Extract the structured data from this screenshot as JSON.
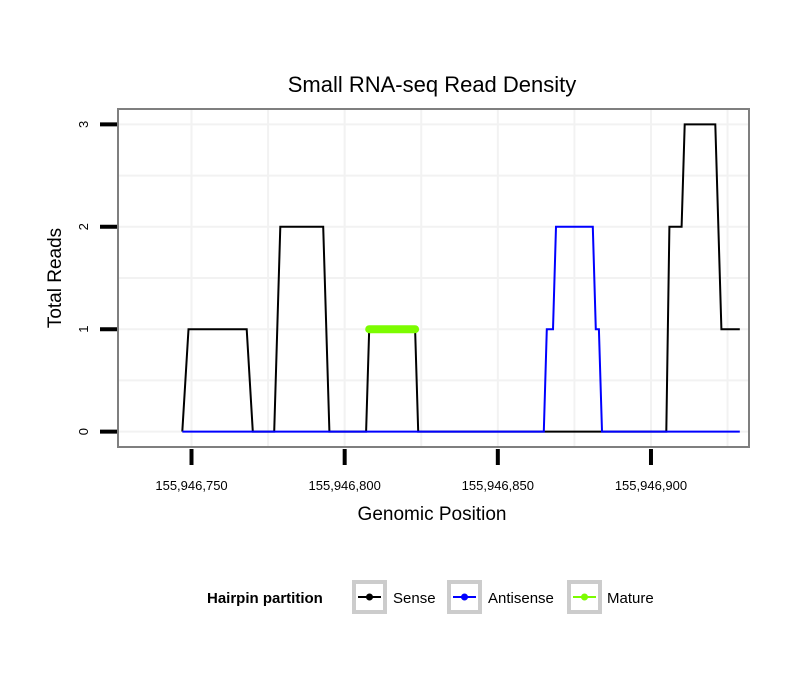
{
  "chart_data": {
    "type": "line",
    "title": "Small RNA-seq Read Density",
    "xlabel": "Genomic Position",
    "ylabel": "Total Reads",
    "xlim": [
      155946726,
      155946932
    ],
    "ylim": [
      -0.15,
      3.15
    ],
    "x_ticks": [
      155946750,
      155946800,
      155946850,
      155946900
    ],
    "x_tick_labels": [
      "155,946,750",
      "155,946,800",
      "155,946,850",
      "155,946,900"
    ],
    "y_ticks": [
      0,
      1,
      2,
      3
    ],
    "y_tick_labels": [
      "0",
      "1",
      "2",
      "3"
    ],
    "grid": true,
    "legend": {
      "title": "Hairpin partition",
      "position": "bottom",
      "entries": [
        "Sense",
        "Antisense",
        "Mature"
      ]
    },
    "series": [
      {
        "name": "Sense",
        "color": "#000000",
        "x": [
          155946747,
          155946749,
          155946768,
          155946770,
          155946777,
          155946779,
          155946793,
          155946795,
          155946807,
          155946808,
          155946823,
          155946824,
          155946905,
          155946906,
          155946910,
          155946911,
          155946921,
          155946923,
          155946929
        ],
        "y": [
          0,
          1,
          1,
          0,
          0,
          2,
          2,
          0,
          0,
          1,
          1,
          0,
          0,
          2,
          2,
          3,
          3,
          1,
          1
        ]
      },
      {
        "name": "Antisense",
        "color": "#0000ff",
        "x": [
          155946747,
          155946865,
          155946866,
          155946868,
          155946869,
          155946881,
          155946882,
          155946883,
          155946884,
          155946929
        ],
        "y": [
          0,
          0,
          1,
          1,
          2,
          2,
          1,
          1,
          0,
          0
        ]
      },
      {
        "name": "Mature",
        "color": "#7cfc00",
        "x": [
          155946808,
          155946823
        ],
        "y": [
          1,
          1
        ]
      }
    ]
  }
}
